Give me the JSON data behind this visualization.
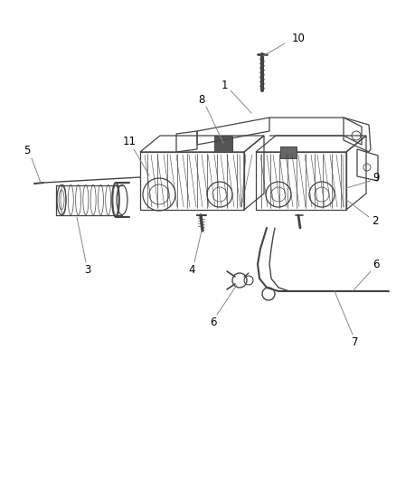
{
  "bg_color": "#ffffff",
  "fig_width": 4.39,
  "fig_height": 5.33,
  "dpi": 100,
  "line_color": "#444444",
  "label_fontsize": 8.5
}
